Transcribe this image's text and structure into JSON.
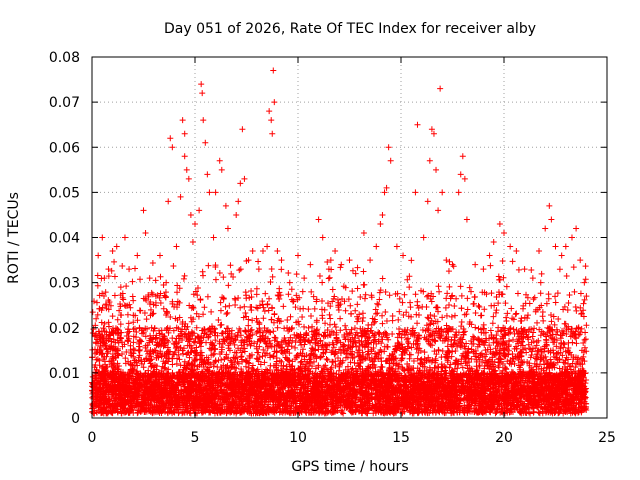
{
  "chart_data": {
    "type": "scatter",
    "title": "Day 051 of 2026, Rate Of TEC Index for receiver alby",
    "xlabel": "GPS time / hours",
    "ylabel": "ROTI / TECUs",
    "xlim": [
      0,
      25
    ],
    "ylim": [
      0,
      0.08
    ],
    "xticks": [
      "0",
      "5",
      "10",
      "15",
      "20",
      "25"
    ],
    "yticks": [
      "0",
      "0.01",
      "0.02",
      "0.03",
      "0.04",
      "0.05",
      "0.06",
      "0.07",
      "0.08"
    ],
    "grid": true,
    "marker": "+",
    "color": "#ff0000",
    "x_range_of_data": [
      0,
      24
    ],
    "series": [
      {
        "points": [
          [
            0.2,
            0.022
          ],
          [
            0.3,
            0.036
          ],
          [
            0.5,
            0.04
          ],
          [
            0.6,
            0.031
          ],
          [
            0.8,
            0.033
          ],
          [
            1.0,
            0.037
          ],
          [
            1.2,
            0.038
          ],
          [
            1.4,
            0.029
          ],
          [
            1.6,
            0.04
          ],
          [
            1.8,
            0.033
          ],
          [
            2.0,
            0.026
          ],
          [
            2.2,
            0.036
          ],
          [
            2.5,
            0.046
          ],
          [
            2.6,
            0.041
          ],
          [
            2.8,
            0.031
          ],
          [
            3.1,
            0.027
          ],
          [
            3.3,
            0.036
          ],
          [
            3.6,
            0.03
          ],
          [
            3.7,
            0.048
          ],
          [
            3.8,
            0.062
          ],
          [
            3.9,
            0.06
          ],
          [
            4.1,
            0.038
          ],
          [
            4.3,
            0.049
          ],
          [
            4.4,
            0.066
          ],
          [
            4.5,
            0.063
          ],
          [
            4.5,
            0.058
          ],
          [
            4.6,
            0.055
          ],
          [
            4.7,
            0.053
          ],
          [
            4.8,
            0.045
          ],
          [
            4.9,
            0.039
          ],
          [
            5.0,
            0.043
          ],
          [
            5.2,
            0.046
          ],
          [
            5.3,
            0.074
          ],
          [
            5.35,
            0.072
          ],
          [
            5.4,
            0.066
          ],
          [
            5.5,
            0.061
          ],
          [
            5.6,
            0.054
          ],
          [
            5.7,
            0.05
          ],
          [
            5.9,
            0.04
          ],
          [
            6.0,
            0.05
          ],
          [
            6.2,
            0.057
          ],
          [
            6.3,
            0.055
          ],
          [
            6.5,
            0.047
          ],
          [
            6.6,
            0.042
          ],
          [
            7.0,
            0.045
          ],
          [
            7.1,
            0.048
          ],
          [
            7.2,
            0.052
          ],
          [
            7.3,
            0.064
          ],
          [
            7.4,
            0.053
          ],
          [
            7.6,
            0.035
          ],
          [
            7.8,
            0.037
          ],
          [
            8.1,
            0.033
          ],
          [
            8.3,
            0.037
          ],
          [
            8.5,
            0.038
          ],
          [
            8.6,
            0.068
          ],
          [
            8.7,
            0.066
          ],
          [
            8.75,
            0.063
          ],
          [
            8.8,
            0.077
          ],
          [
            8.85,
            0.07
          ],
          [
            9.0,
            0.037
          ],
          [
            9.2,
            0.035
          ],
          [
            9.6,
            0.03
          ],
          [
            10.0,
            0.036
          ],
          [
            10.3,
            0.031
          ],
          [
            10.6,
            0.034
          ],
          [
            11.0,
            0.044
          ],
          [
            11.2,
            0.04
          ],
          [
            11.5,
            0.033
          ],
          [
            11.8,
            0.037
          ],
          [
            12.1,
            0.034
          ],
          [
            12.5,
            0.035
          ],
          [
            12.8,
            0.032
          ],
          [
            13.2,
            0.041
          ],
          [
            13.5,
            0.035
          ],
          [
            13.8,
            0.038
          ],
          [
            14.0,
            0.043
          ],
          [
            14.1,
            0.045
          ],
          [
            14.2,
            0.05
          ],
          [
            14.3,
            0.051
          ],
          [
            14.4,
            0.06
          ],
          [
            14.5,
            0.057
          ],
          [
            14.8,
            0.038
          ],
          [
            15.1,
            0.036
          ],
          [
            15.4,
            0.029
          ],
          [
            15.7,
            0.05
          ],
          [
            15.8,
            0.065
          ],
          [
            16.1,
            0.04
          ],
          [
            16.3,
            0.048
          ],
          [
            16.4,
            0.057
          ],
          [
            16.5,
            0.064
          ],
          [
            16.6,
            0.063
          ],
          [
            16.7,
            0.055
          ],
          [
            16.8,
            0.046
          ],
          [
            16.9,
            0.073
          ],
          [
            17.0,
            0.05
          ],
          [
            17.2,
            0.035
          ],
          [
            17.5,
            0.034
          ],
          [
            17.8,
            0.05
          ],
          [
            17.9,
            0.054
          ],
          [
            18.0,
            0.058
          ],
          [
            18.1,
            0.053
          ],
          [
            18.2,
            0.044
          ],
          [
            18.4,
            0.028
          ],
          [
            18.6,
            0.034
          ],
          [
            19.0,
            0.033
          ],
          [
            19.3,
            0.036
          ],
          [
            19.5,
            0.039
          ],
          [
            19.8,
            0.043
          ],
          [
            20.0,
            0.041
          ],
          [
            20.3,
            0.038
          ],
          [
            20.6,
            0.037
          ],
          [
            21.0,
            0.033
          ],
          [
            21.4,
            0.031
          ],
          [
            21.7,
            0.037
          ],
          [
            22.0,
            0.042
          ],
          [
            22.2,
            0.047
          ],
          [
            22.3,
            0.044
          ],
          [
            22.5,
            0.038
          ],
          [
            22.8,
            0.036
          ],
          [
            23.0,
            0.038
          ],
          [
            23.3,
            0.04
          ],
          [
            23.5,
            0.042
          ],
          [
            23.7,
            0.035
          ],
          [
            23.9,
            0.03
          ],
          [
            24.0,
            0.027
          ]
        ]
      }
    ]
  }
}
